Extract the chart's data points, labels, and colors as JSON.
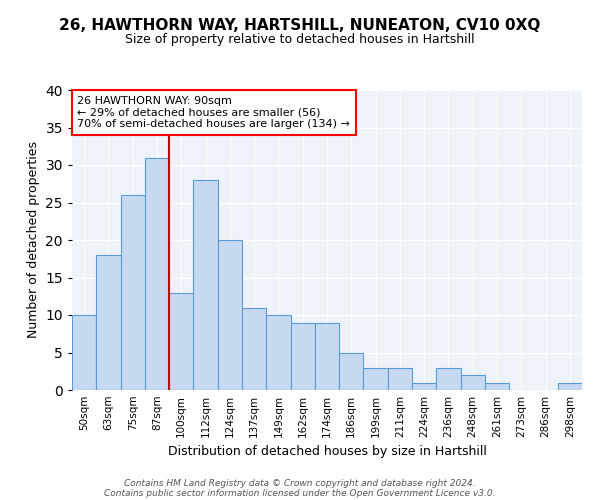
{
  "title": "26, HAWTHORN WAY, HARTSHILL, NUNEATON, CV10 0XQ",
  "subtitle": "Size of property relative to detached houses in Hartshill",
  "xlabel": "Distribution of detached houses by size in Hartshill",
  "ylabel": "Number of detached properties",
  "bar_labels": [
    "50sqm",
    "63sqm",
    "75sqm",
    "87sqm",
    "100sqm",
    "112sqm",
    "124sqm",
    "137sqm",
    "149sqm",
    "162sqm",
    "174sqm",
    "186sqm",
    "199sqm",
    "211sqm",
    "224sqm",
    "236sqm",
    "248sqm",
    "261sqm",
    "273sqm",
    "286sqm",
    "298sqm"
  ],
  "bar_values": [
    10,
    18,
    26,
    31,
    13,
    28,
    20,
    11,
    10,
    9,
    9,
    5,
    3,
    3,
    1,
    3,
    2,
    1,
    0,
    0,
    1
  ],
  "bar_color": "#c6d9f0",
  "bar_edge_color": "#5b9bd5",
  "vline_x": 3.0,
  "vline_color": "#cc0000",
  "ylim": [
    0,
    40
  ],
  "annotation_text": "26 HAWTHORN WAY: 90sqm\n← 29% of detached houses are smaller (56)\n70% of semi-detached houses are larger (134) →",
  "annotation_box_color": "red",
  "footnote1": "Contains HM Land Registry data © Crown copyright and database right 2024.",
  "footnote2": "Contains public sector information licensed under the Open Government Licence v3.0.",
  "bg_color": "#eef2f9",
  "title_fontsize": 11,
  "subtitle_fontsize": 9,
  "ylabel_fontsize": 9,
  "xlabel_fontsize": 9,
  "tick_fontsize": 7.5,
  "annot_fontsize": 8,
  "footnote_fontsize": 6.5
}
